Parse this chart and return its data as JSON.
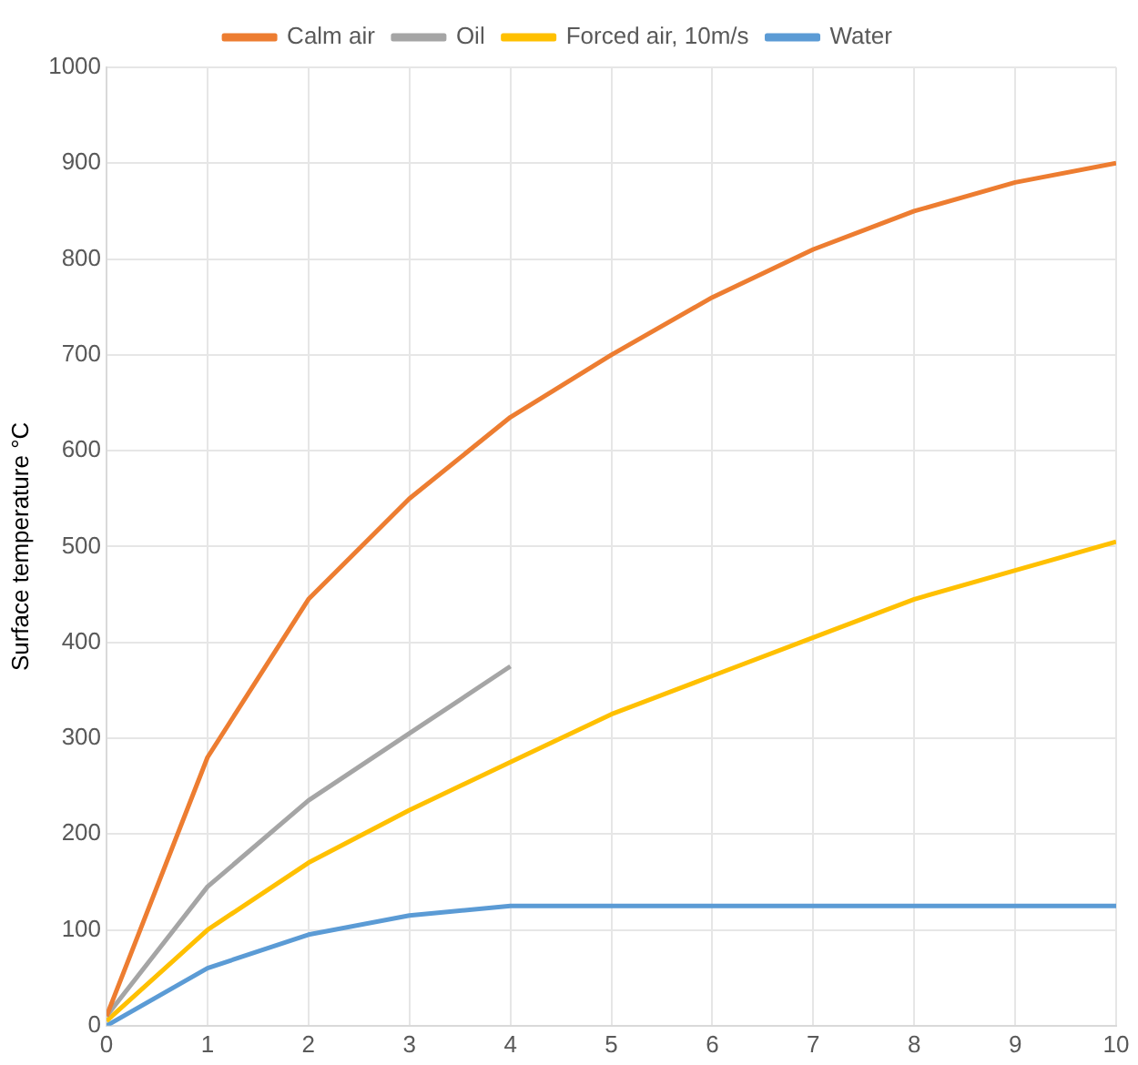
{
  "chart_data": {
    "type": "line",
    "ylabel": "Surface temperature °C",
    "x": [
      0,
      1,
      2,
      3,
      4,
      5,
      6,
      7,
      8,
      9,
      10
    ],
    "xlim": [
      0,
      10
    ],
    "xticks": [
      0,
      1,
      2,
      3,
      4,
      5,
      6,
      7,
      8,
      9,
      10
    ],
    "ylim": [
      0,
      1000
    ],
    "yticks": [
      0,
      100,
      200,
      300,
      400,
      500,
      600,
      700,
      800,
      900,
      1000
    ],
    "grid": true,
    "legend": "top",
    "marker": "none",
    "line_style": "solid",
    "series": [
      {
        "name": "Calm air",
        "color": "#ed7d31",
        "values": [
          10,
          280,
          445,
          550,
          635,
          700,
          760,
          810,
          850,
          880,
          900
        ]
      },
      {
        "name": "Oil",
        "color": "#a5a5a5",
        "x": [
          0,
          1,
          2,
          3,
          4
        ],
        "values": [
          10,
          145,
          235,
          305,
          375
        ]
      },
      {
        "name": "Forced air, 10m/s",
        "color": "#ffc000",
        "values": [
          5,
          100,
          170,
          225,
          275,
          325,
          365,
          405,
          445,
          475,
          505
        ]
      },
      {
        "name": "Water",
        "color": "#5b9bd5",
        "values": [
          0,
          60,
          95,
          115,
          125,
          125,
          125,
          125,
          125,
          125,
          125
        ]
      }
    ]
  }
}
